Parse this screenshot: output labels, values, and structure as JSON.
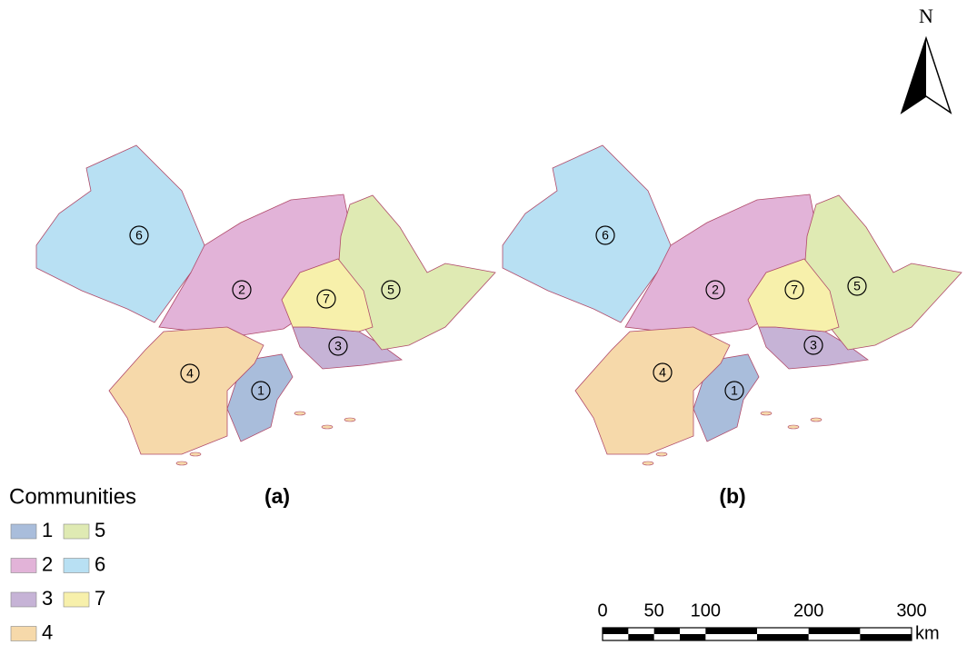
{
  "north": "N",
  "panels": [
    {
      "label": "(a)"
    },
    {
      "label": "(b)"
    }
  ],
  "legend": {
    "title": "Communities",
    "items": [
      {
        "label": "1",
        "color": "#a9bddb"
      },
      {
        "label": "2",
        "color": "#e2b3d8"
      },
      {
        "label": "3",
        "color": "#c6b3d6"
      },
      {
        "label": "4",
        "color": "#f6d9aa"
      },
      {
        "label": "5",
        "color": "#dfeab3"
      },
      {
        "label": "6",
        "color": "#b8e0f3"
      },
      {
        "label": "7",
        "color": "#f7f0ab"
      }
    ]
  },
  "scale_bar": {
    "ticks": [
      0,
      50,
      100,
      200,
      300
    ],
    "unit": "km"
  }
}
